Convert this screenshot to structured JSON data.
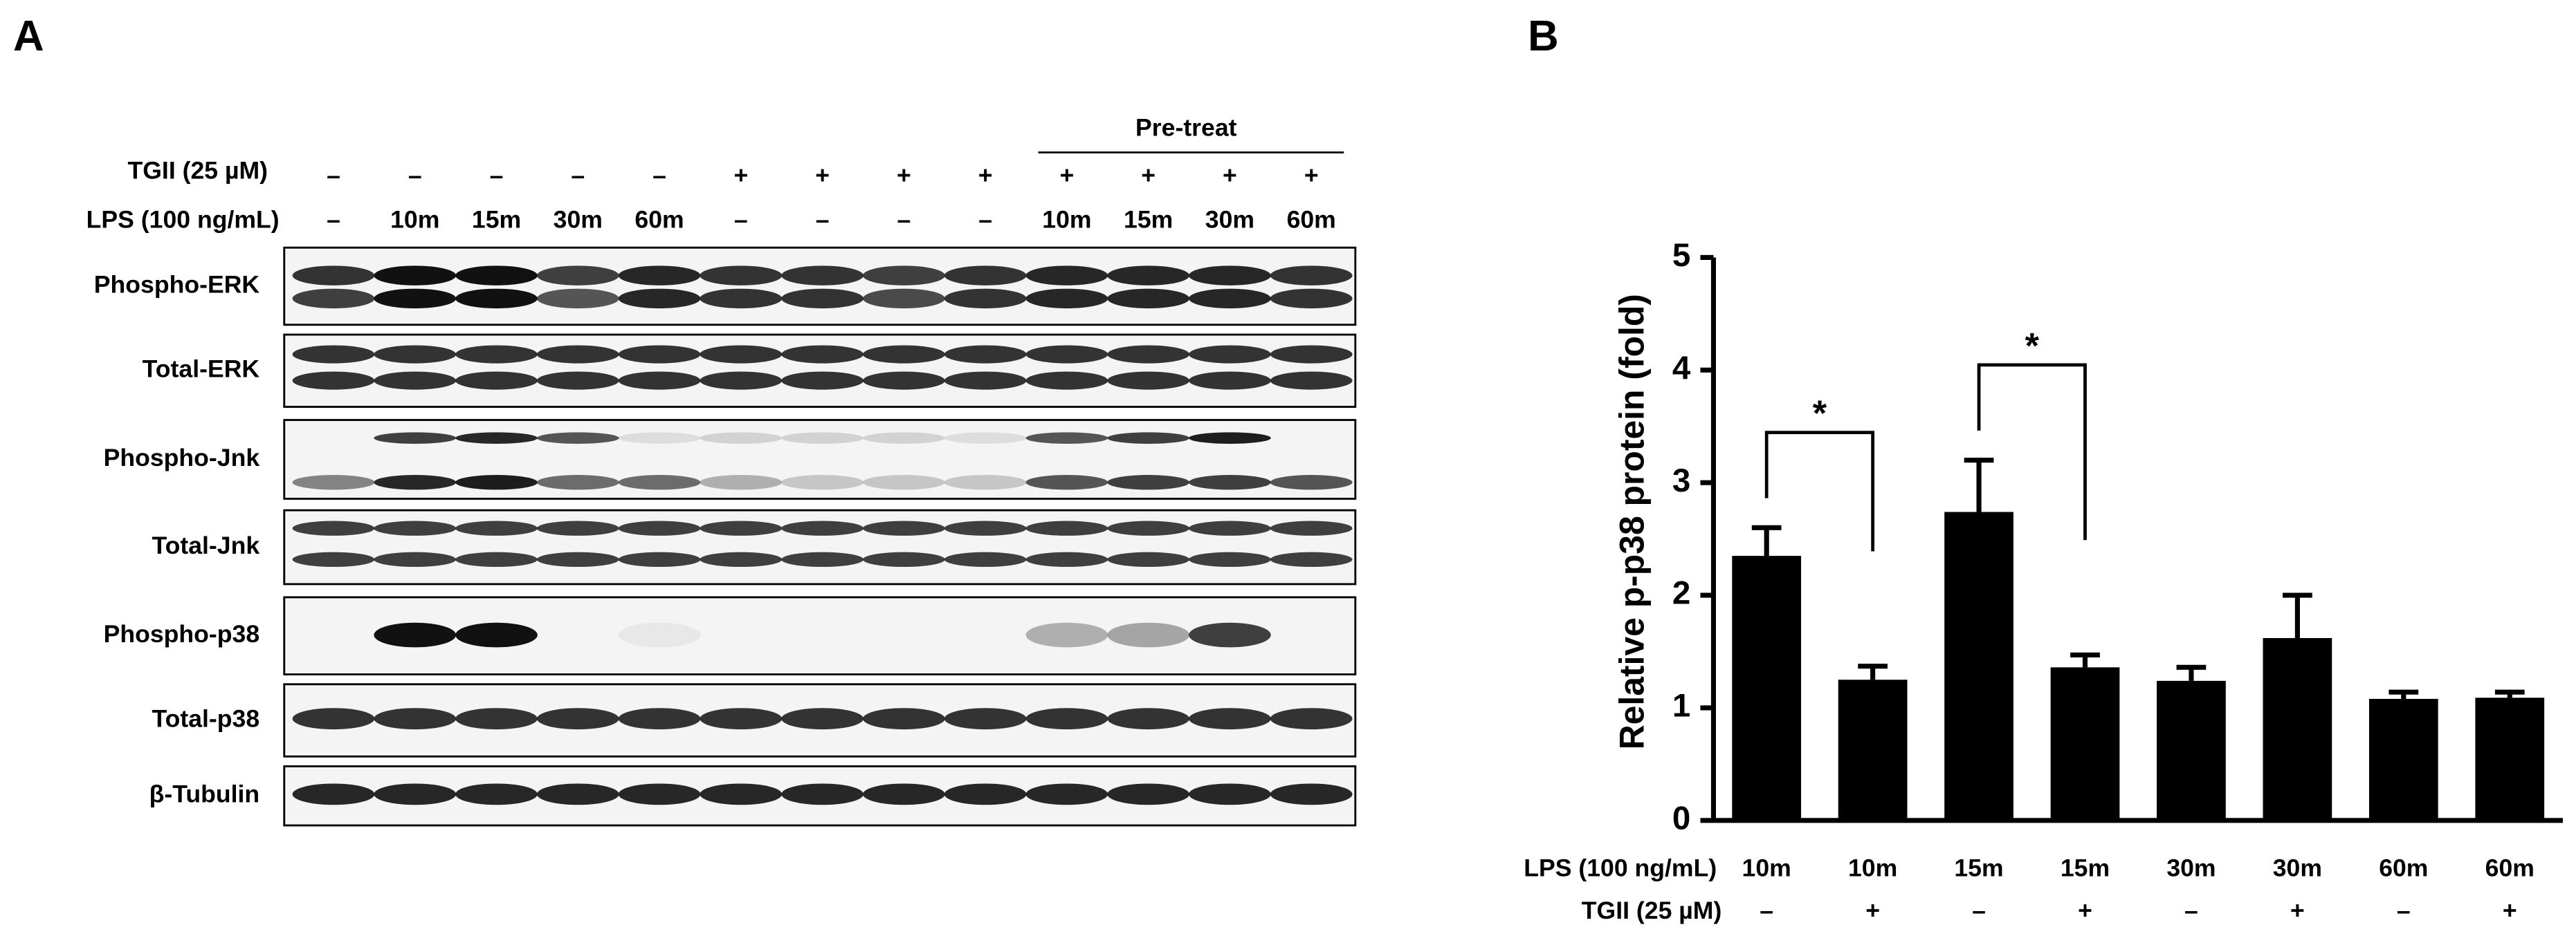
{
  "panel_a": {
    "label": "A",
    "pretreat": "Pre-treat",
    "tgii_label": "TGII (25 µM)",
    "lps_label": "LPS (100  ng/mL)",
    "tgii": [
      "–",
      "–",
      "–",
      "–",
      "–",
      "+",
      "+",
      "+",
      "+",
      "+",
      "+",
      "+",
      "+"
    ],
    "lps": [
      "–",
      "10m",
      "15m",
      "30m",
      "60m",
      "–",
      "–",
      "–",
      "–",
      "10m",
      "15m",
      "30m",
      "60m"
    ],
    "blots": [
      "Phospho-ERK",
      "Total-ERK",
      "Phospho-Jnk",
      "Total-Jnk",
      "Phospho-p38",
      "Total-p38",
      "β-Tubulin"
    ]
  },
  "chart_data": {
    "type": "bar",
    "panel_label": "B",
    "ylabel": "Relative p-p38 protein (fold)",
    "lps_label": "LPS (100  ng/mL)",
    "tgii_label": "TGII (25 µM)",
    "categories": [
      "10m",
      "10m",
      "15m",
      "15m",
      "30m",
      "30m",
      "60m",
      "60m"
    ],
    "tgii": [
      "–",
      "+",
      "–",
      "+",
      "–",
      "+",
      "–",
      "+"
    ],
    "values": [
      2.35,
      1.25,
      2.74,
      1.36,
      1.24,
      1.62,
      1.08,
      1.09
    ],
    "errors": [
      0.25,
      0.12,
      0.46,
      0.11,
      0.12,
      0.38,
      0.06,
      0.05
    ],
    "color": "#000000",
    "ylim": [
      0,
      5
    ],
    "yticks": [
      0,
      1,
      2,
      3,
      4,
      5
    ],
    "annotations": [
      {
        "text": "*",
        "categories": [
          0,
          1
        ]
      },
      {
        "text": "*",
        "categories": [
          2,
          3
        ]
      }
    ]
  }
}
